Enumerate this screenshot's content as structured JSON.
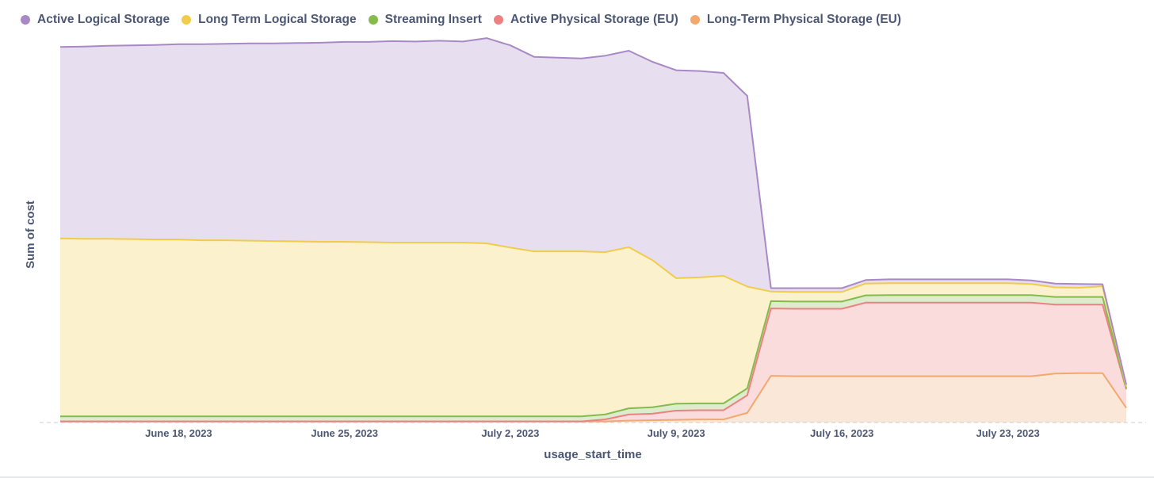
{
  "chart_data": {
    "type": "area",
    "stacked": true,
    "legend_position": "top-left",
    "grid": false,
    "xlabel": "usage_start_time",
    "ylabel": "Sum of cost",
    "x_tick_labels": [
      "June 18, 2023",
      "June 25, 2023",
      "July 2, 2023",
      "July 9, 2023",
      "July 16, 2023",
      "July 23, 2023"
    ],
    "x_tick_dates": [
      "2023-06-18",
      "2023-06-25",
      "2023-07-02",
      "2023-07-09",
      "2023-07-16",
      "2023-07-23"
    ],
    "x_range": [
      "2023-06-13",
      "2023-07-30"
    ],
    "ylim": [
      0,
      100
    ],
    "x": [
      "2023-06-13",
      "2023-06-14",
      "2023-06-15",
      "2023-06-16",
      "2023-06-17",
      "2023-06-18",
      "2023-06-19",
      "2023-06-20",
      "2023-06-21",
      "2023-06-22",
      "2023-06-23",
      "2023-06-24",
      "2023-06-25",
      "2023-06-26",
      "2023-06-27",
      "2023-06-28",
      "2023-06-29",
      "2023-06-30",
      "2023-07-01",
      "2023-07-02",
      "2023-07-03",
      "2023-07-04",
      "2023-07-05",
      "2023-07-06",
      "2023-07-07",
      "2023-07-08",
      "2023-07-09",
      "2023-07-10",
      "2023-07-11",
      "2023-07-12",
      "2023-07-13",
      "2023-07-14",
      "2023-07-15",
      "2023-07-16",
      "2023-07-17",
      "2023-07-18",
      "2023-07-19",
      "2023-07-20",
      "2023-07-21",
      "2023-07-22",
      "2023-07-23",
      "2023-07-24",
      "2023-07-25",
      "2023-07-26",
      "2023-07-27",
      "2023-07-28"
    ],
    "series": [
      {
        "name": "Long-Term Physical Storage (EU)",
        "color": "#f2a86f",
        "values": [
          0.3,
          0.3,
          0.3,
          0.3,
          0.3,
          0.3,
          0.3,
          0.3,
          0.3,
          0.3,
          0.3,
          0.3,
          0.3,
          0.3,
          0.3,
          0.3,
          0.3,
          0.3,
          0.3,
          0.3,
          0.3,
          0.3,
          0.3,
          0.3,
          0.5,
          0.6,
          0.7,
          0.8,
          0.8,
          2.5,
          12.2,
          12.1,
          12.1,
          12.1,
          12.1,
          12.1,
          12.1,
          12.1,
          12.1,
          12.1,
          12.1,
          12.1,
          12.8,
          12.9,
          12.9,
          3.8
        ]
      },
      {
        "name": "Active Physical Storage (EU)",
        "color": "#ed8181",
        "values": [
          0,
          0,
          0,
          0,
          0,
          0,
          0,
          0,
          0,
          0,
          0,
          0,
          0,
          0,
          0,
          0,
          0,
          0,
          0,
          0,
          0,
          0,
          0,
          0.5,
          1.6,
          1.7,
          2.4,
          2.4,
          2.4,
          4.6,
          17.6,
          17.6,
          17.6,
          17.6,
          19.2,
          19.2,
          19.2,
          19.2,
          19.2,
          19.2,
          19.2,
          19.2,
          18.0,
          17.9,
          17.9,
          4.9
        ]
      },
      {
        "name": "Streaming Insert",
        "color": "#84bb4c",
        "values": [
          1.3,
          1.3,
          1.3,
          1.3,
          1.3,
          1.3,
          1.3,
          1.3,
          1.3,
          1.3,
          1.3,
          1.3,
          1.3,
          1.3,
          1.3,
          1.3,
          1.3,
          1.3,
          1.3,
          1.3,
          1.3,
          1.3,
          1.3,
          1.3,
          1.6,
          1.7,
          1.8,
          1.8,
          1.8,
          1.8,
          1.9,
          1.9,
          1.9,
          1.9,
          1.9,
          2.0,
          2.0,
          2.0,
          2.0,
          2.0,
          2.0,
          2.0,
          2.0,
          2.0,
          2.0,
          0.2
        ]
      },
      {
        "name": "Long Term Logical Storage",
        "color": "#f1cc4a",
        "values": [
          46.5,
          46.4,
          46.4,
          46.3,
          46.2,
          46.2,
          46.0,
          46.0,
          45.9,
          45.8,
          45.7,
          45.6,
          45.6,
          45.5,
          45.4,
          45.4,
          45.4,
          45.4,
          45.2,
          44.1,
          43.1,
          43.1,
          43.1,
          42.4,
          42.1,
          38.4,
          32.8,
          32.9,
          33.3,
          26.6,
          2.5,
          2.5,
          2.5,
          2.5,
          3.1,
          3.1,
          3.1,
          3.1,
          3.1,
          3.1,
          3.1,
          2.9,
          2.5,
          2.4,
          2.8,
          0.5
        ]
      },
      {
        "name": "Active Logical Storage",
        "color": "#a989c5",
        "values": [
          50.0,
          50.2,
          50.4,
          50.6,
          50.8,
          51.0,
          51.2,
          51.3,
          51.5,
          51.6,
          51.8,
          52.0,
          52.2,
          52.3,
          52.6,
          52.5,
          52.7,
          52.5,
          53.6,
          52.8,
          50.8,
          50.6,
          50.4,
          51.3,
          51.3,
          51.8,
          54.3,
          53.9,
          53.0,
          49.8,
          0.9,
          1.0,
          1.0,
          1.0,
          0.9,
          1.0,
          1.0,
          1.0,
          1.0,
          1.0,
          1.0,
          0.9,
          1.0,
          1.0,
          0.5,
          0.5
        ]
      }
    ]
  },
  "legend": [
    {
      "label": "Active Logical Storage",
      "color": "#a989c5"
    },
    {
      "label": "Long Term Logical Storage",
      "color": "#f1cc4a"
    },
    {
      "label": "Streaming Insert",
      "color": "#84bb4c"
    },
    {
      "label": "Active Physical Storage (EU)",
      "color": "#ed8181"
    },
    {
      "label": "Long-Term Physical Storage (EU)",
      "color": "#f2a86f"
    }
  ]
}
